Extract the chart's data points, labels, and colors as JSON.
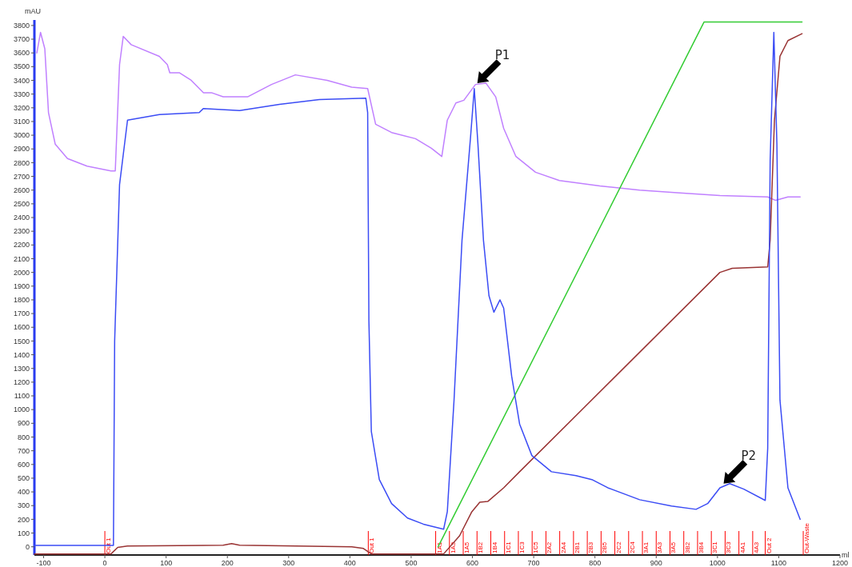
{
  "chart_data": {
    "type": "line",
    "xlabel": "ml",
    "ylabel": "mAU",
    "xlim": [
      -115,
      1200
    ],
    "ylim": [
      -60,
      3840
    ],
    "xticks": [
      -100,
      0,
      100,
      200,
      300,
      400,
      500,
      600,
      700,
      800,
      900,
      1000,
      1100,
      1200
    ],
    "yticks": [
      0,
      100,
      200,
      300,
      400,
      500,
      600,
      700,
      800,
      900,
      1000,
      1100,
      1200,
      1300,
      1400,
      1500,
      1600,
      1700,
      1800,
      1900,
      2000,
      2100,
      2200,
      2300,
      2400,
      2500,
      2600,
      2700,
      2800,
      2900,
      3000,
      3100,
      3200,
      3300,
      3400,
      3500,
      3600,
      3700,
      3800
    ],
    "series": [
      {
        "color": "#c080ff",
        "x": [
          -111,
          -105,
          -98,
          -92,
          -81,
          -61,
          -29,
          10,
          17,
          24,
          30,
          43,
          89,
          102,
          106,
          122,
          141,
          161,
          174,
          193,
          233,
          272,
          311,
          363,
          403,
          429,
          442,
          468,
          507,
          533,
          550,
          559,
          573,
          586,
          605,
          622,
          638,
          651,
          671,
          703,
          742,
          808,
          873,
          939,
          1004,
          1082,
          1095,
          1115,
          1135
        ],
        "values": [
          3600,
          3750,
          3630,
          3165,
          2935,
          2830,
          2775,
          2740,
          2740,
          3515,
          3720,
          3660,
          3575,
          3515,
          3455,
          3455,
          3400,
          3310,
          3310,
          3280,
          3280,
          3370,
          3440,
          3400,
          3350,
          3340,
          3080,
          3020,
          2975,
          2905,
          2845,
          3110,
          3235,
          3255,
          3370,
          3380,
          3280,
          3050,
          2845,
          2730,
          2670,
          2630,
          2600,
          2580,
          2560,
          2550,
          2525,
          2550,
          2550
        ]
      },
      {
        "color": "#33cc33",
        "x": [
          544,
          978,
          1138
        ],
        "values": [
          0,
          3825,
          3825
        ]
      },
      {
        "color": "#993333",
        "x": [
          -115,
          10,
          21,
          37,
          193,
          207,
          220,
          403,
          422,
          435,
          553,
          579,
          599,
          612,
          625,
          651,
          677,
          1004,
          1024,
          1082,
          1086,
          1093,
          1102,
          1115,
          1138
        ],
        "values": [
          -52,
          -52,
          -5,
          5,
          12,
          23,
          12,
          0,
          -12,
          -52,
          -52,
          80,
          255,
          325,
          330,
          430,
          547,
          2000,
          2030,
          2040,
          2235,
          3110,
          3575,
          3690,
          3740
        ]
      },
      {
        "color": "#3b4cf5",
        "x": [
          -115,
          14,
          16,
          24,
          37,
          89,
          154,
          161,
          220,
          285,
          350,
          426,
          429,
          431,
          435,
          448,
          468,
          494,
          520,
          553,
          559,
          570,
          583,
          597,
          603,
          609,
          618,
          627,
          635,
          645,
          651,
          664,
          677,
          697,
          729,
          769,
          795,
          821,
          873,
          925,
          965,
          984,
          1004,
          1020,
          1043,
          1078,
          1082,
          1086,
          1092,
          1097,
          1102,
          1115,
          1135
        ],
        "values": [
          10,
          10,
          1500,
          2640,
          3110,
          3150,
          3165,
          3195,
          3180,
          3225,
          3260,
          3270,
          3165,
          1650,
          840,
          490,
          315,
          210,
          165,
          128,
          255,
          1070,
          2235,
          2990,
          3340,
          2935,
          2235,
          1830,
          1710,
          1800,
          1740,
          1245,
          895,
          665,
          547,
          518,
          490,
          430,
          343,
          297,
          273,
          315,
          430,
          460,
          420,
          338,
          720,
          2817,
          3750,
          2935,
          1070,
          430,
          200
        ]
      }
    ],
    "annotations": [
      {
        "text": "P1",
        "x": 608,
        "y": 3380
      },
      {
        "text": "P2",
        "x": 1010,
        "y": 460
      }
    ],
    "ref_lines": [
      {
        "axis": "x",
        "value": 0,
        "label": "Out 1",
        "color": "#ff0000"
      },
      {
        "axis": "x",
        "value": 430,
        "label": "Out 1",
        "color": "#ff0000"
      },
      {
        "axis": "x",
        "value": 540,
        "label": "1A1",
        "color": "#ff0000"
      },
      {
        "axis": "x",
        "value": 562.5,
        "label": "1A3",
        "color": "#ff0000"
      },
      {
        "axis": "x",
        "value": 585,
        "label": "1A5",
        "color": "#ff0000"
      },
      {
        "axis": "x",
        "value": 607.5,
        "label": "1B2",
        "color": "#ff0000"
      },
      {
        "axis": "x",
        "value": 630,
        "label": "1B4",
        "color": "#ff0000"
      },
      {
        "axis": "x",
        "value": 652.5,
        "label": "1C1",
        "color": "#ff0000"
      },
      {
        "axis": "x",
        "value": 675,
        "label": "1C3",
        "color": "#ff0000"
      },
      {
        "axis": "x",
        "value": 697.5,
        "label": "1C5",
        "color": "#ff0000"
      },
      {
        "axis": "x",
        "value": 720,
        "label": "2A2",
        "color": "#ff0000"
      },
      {
        "axis": "x",
        "value": 742.5,
        "label": "2A4",
        "color": "#ff0000"
      },
      {
        "axis": "x",
        "value": 765,
        "label": "2B1",
        "color": "#ff0000"
      },
      {
        "axis": "x",
        "value": 787.5,
        "label": "2B3",
        "color": "#ff0000"
      },
      {
        "axis": "x",
        "value": 810,
        "label": "2B5",
        "color": "#ff0000"
      },
      {
        "axis": "x",
        "value": 832.5,
        "label": "2C2",
        "color": "#ff0000"
      },
      {
        "axis": "x",
        "value": 855,
        "label": "2C4",
        "color": "#ff0000"
      },
      {
        "axis": "x",
        "value": 877.5,
        "label": "3A1",
        "color": "#ff0000"
      },
      {
        "axis": "x",
        "value": 900,
        "label": "3A3",
        "color": "#ff0000"
      },
      {
        "axis": "x",
        "value": 922.5,
        "label": "3A5",
        "color": "#ff0000"
      },
      {
        "axis": "x",
        "value": 945,
        "label": "3B2",
        "color": "#ff0000"
      },
      {
        "axis": "x",
        "value": 967.5,
        "label": "3B4",
        "color": "#ff0000"
      },
      {
        "axis": "x",
        "value": 990,
        "label": "3C1",
        "color": "#ff0000"
      },
      {
        "axis": "x",
        "value": 1012.5,
        "label": "3C3",
        "color": "#ff0000"
      },
      {
        "axis": "x",
        "value": 1035,
        "label": "4A1",
        "color": "#ff0000"
      },
      {
        "axis": "x",
        "value": 1057.5,
        "label": "4A3",
        "color": "#ff0000"
      },
      {
        "axis": "x",
        "value": 1078,
        "label": "Out 2",
        "color": "#ff0000"
      },
      {
        "axis": "x",
        "value": 1140,
        "label": "Out-Waste",
        "color": "#ff0000"
      }
    ]
  }
}
